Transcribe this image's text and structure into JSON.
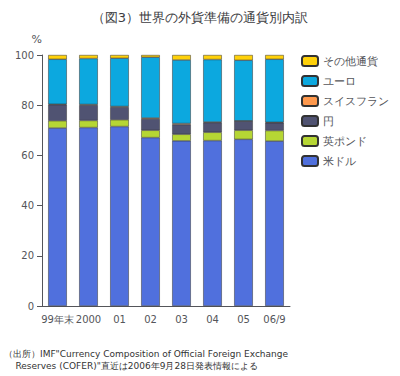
{
  "chart_data": {
    "type": "bar",
    "title": "（図3）世界の外貨準備の通貨別内訳",
    "ylabel": "%",
    "categories": [
      "99年末",
      "2000",
      "01",
      "02",
      "03",
      "04",
      "05",
      "06/9"
    ],
    "series": [
      {
        "name": "米ドル",
        "values": [
          70.9,
          71.1,
          71.5,
          67.1,
          65.8,
          65.9,
          66.4,
          65.7
        ]
      },
      {
        "name": "英ポンド",
        "values": [
          2.9,
          2.8,
          2.7,
          2.9,
          2.6,
          3.3,
          3.6,
          4.2
        ]
      },
      {
        "name": "円",
        "values": [
          6.4,
          6.1,
          5.0,
          4.5,
          3.9,
          3.9,
          3.7,
          3.1
        ]
      },
      {
        "name": "スイスフラン",
        "values": [
          0.2,
          0.3,
          0.3,
          0.4,
          0.4,
          0.2,
          0.1,
          0.2
        ]
      },
      {
        "name": "ユーロ",
        "values": [
          17.9,
          18.3,
          19.2,
          24.2,
          25.3,
          24.9,
          24.1,
          25.1
        ]
      },
      {
        "name": "その他通貨",
        "values": [
          1.7,
          1.4,
          1.3,
          0.9,
          2.0,
          1.8,
          2.1,
          1.7
        ]
      }
    ],
    "stacked": true,
    "ylim": [
      0,
      100
    ],
    "yticks": [
      0,
      20,
      40,
      60,
      80,
      100
    ],
    "grid": false,
    "legend": "right",
    "annotations": [
      "（出所）IMF\"Currency Composition of Official Foreign Exchange",
      "    Reserves (COFER)\"直近は2006年9月28日発表情報による"
    ]
  }
}
